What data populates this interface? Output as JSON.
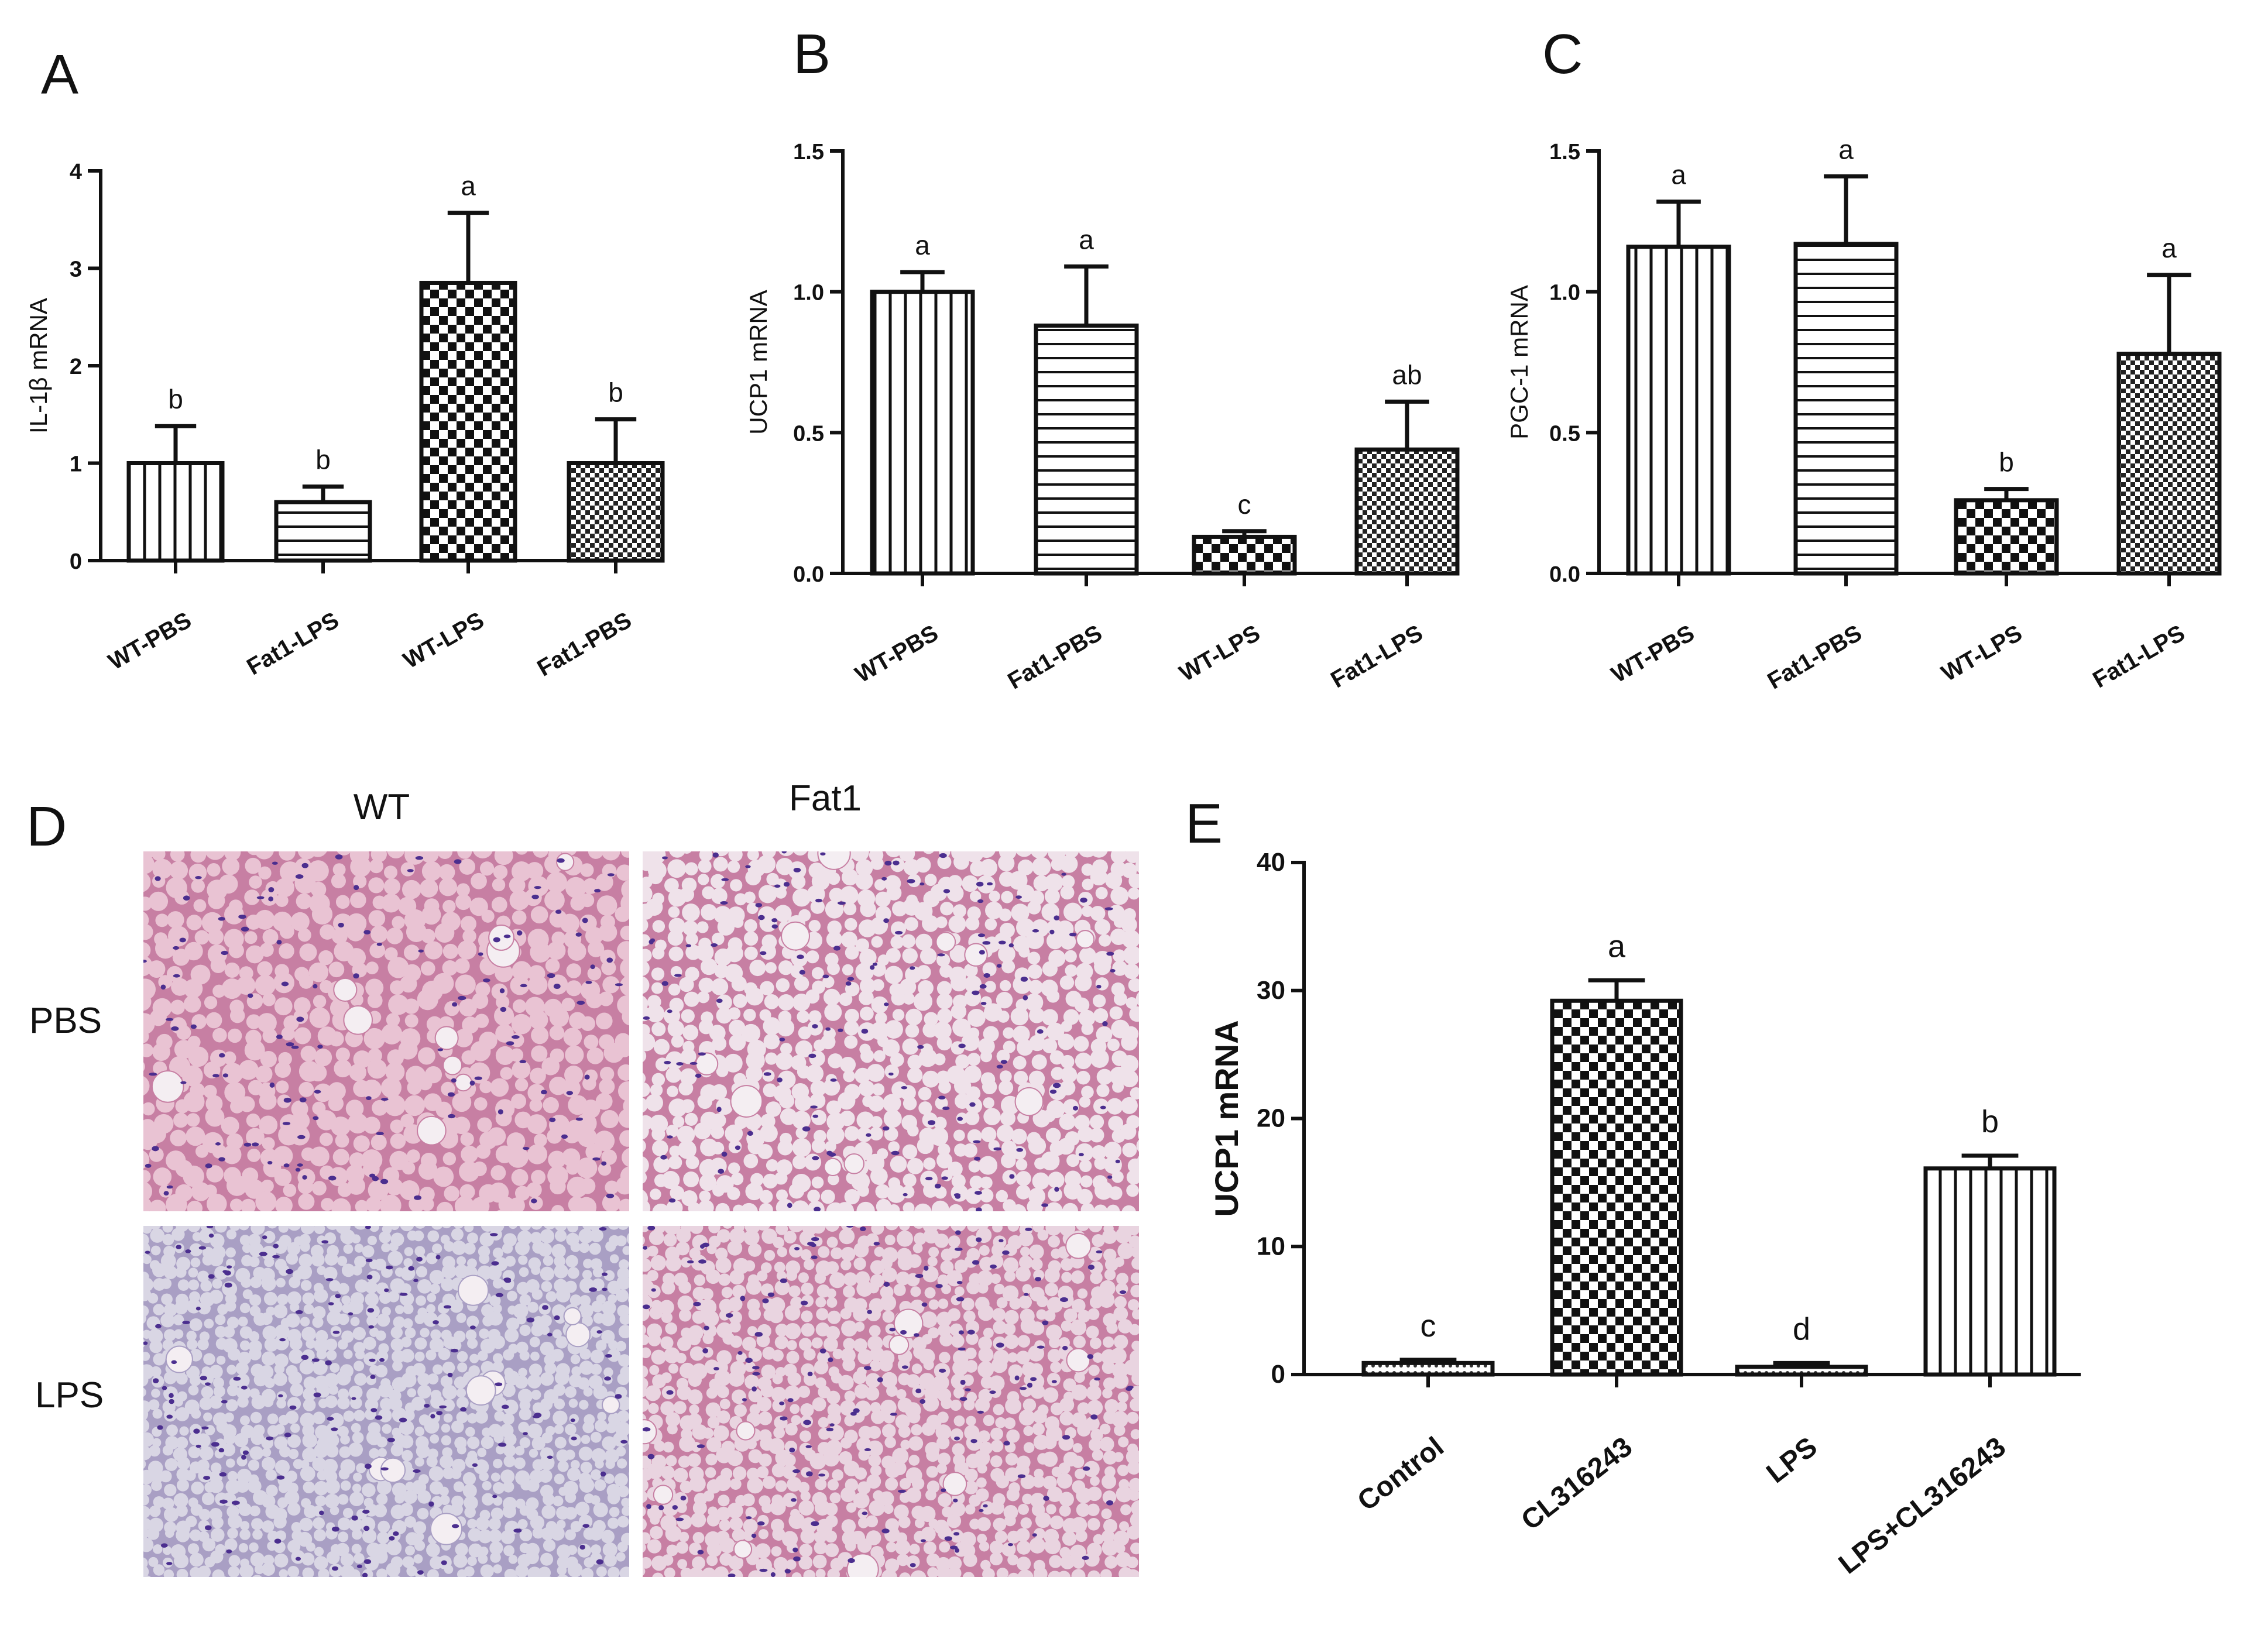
{
  "panels": {
    "A": "A",
    "B": "B",
    "C": "C",
    "D": "D",
    "E": "E"
  },
  "histology": {
    "columns": [
      "WT",
      "Fat1"
    ],
    "rows": [
      "PBS",
      "LPS"
    ],
    "colors": {
      "he_pink_bg": "#e9c3d3",
      "he_pink_membrane": "#c77fa3",
      "he_pale_bg": "#d9d6e4",
      "he_pale_membrane": "#a99fc4",
      "nucleus": "#4b2e8f"
    }
  },
  "chart_data": [
    {
      "id": "A",
      "type": "bar",
      "ylabel": "IL-1β mRNA",
      "ylim": [
        0,
        4
      ],
      "yticks": [
        "0",
        "1",
        "2",
        "3",
        "4"
      ],
      "categories": [
        "WT-PBS",
        "Fat1-LPS",
        "WT-LPS",
        "Fat1-PBS"
      ],
      "values": [
        1.0,
        0.6,
        2.85,
        1.0
      ],
      "errors": [
        0.38,
        0.16,
        0.72,
        0.45
      ],
      "letters": [
        "b",
        "b",
        "a",
        "b"
      ],
      "patterns": [
        "vertical",
        "horizontal",
        "check-large",
        "check-small"
      ]
    },
    {
      "id": "B",
      "type": "bar",
      "ylabel": "UCP1 mRNA",
      "ylim": [
        0,
        1.5
      ],
      "yticks": [
        "0.0",
        "0.5",
        "1.0",
        "1.5"
      ],
      "categories": [
        "WT-PBS",
        "Fat1-PBS",
        "WT-LPS",
        "Fat1-LPS"
      ],
      "values": [
        1.0,
        0.88,
        0.13,
        0.44
      ],
      "errors": [
        0.07,
        0.21,
        0.02,
        0.17
      ],
      "letters": [
        "a",
        "a",
        "c",
        "ab"
      ],
      "patterns": [
        "vertical",
        "horizontal",
        "check-large",
        "check-small"
      ]
    },
    {
      "id": "C",
      "type": "bar",
      "ylabel": "PGC-1 mRNA",
      "ylim": [
        0,
        1.5
      ],
      "yticks": [
        "0.0",
        "0.5",
        "1.0",
        "1.5"
      ],
      "categories": [
        "WT-PBS",
        "Fat1-PBS",
        "WT-LPS",
        "Fat1-LPS"
      ],
      "values": [
        1.16,
        1.17,
        0.26,
        0.78
      ],
      "errors": [
        0.16,
        0.24,
        0.04,
        0.28
      ],
      "letters": [
        "a",
        "a",
        "b",
        "a"
      ],
      "patterns": [
        "vertical",
        "horizontal",
        "check-large",
        "check-small"
      ]
    },
    {
      "id": "E",
      "type": "bar",
      "ylabel": "UCP1 mRNA",
      "ylim": [
        0,
        40
      ],
      "yticks": [
        "0",
        "10",
        "20",
        "30",
        "40"
      ],
      "categories": [
        "Control",
        "CL316243",
        "LPS",
        "LPS+CL316243"
      ],
      "values": [
        0.9,
        29.2,
        0.6,
        16.1
      ],
      "errors": [
        0.25,
        1.6,
        0.3,
        1.0
      ],
      "letters": [
        "c",
        "a",
        "d",
        "b"
      ],
      "patterns": [
        "dots",
        "check-large",
        "dots",
        "vertical"
      ]
    }
  ]
}
